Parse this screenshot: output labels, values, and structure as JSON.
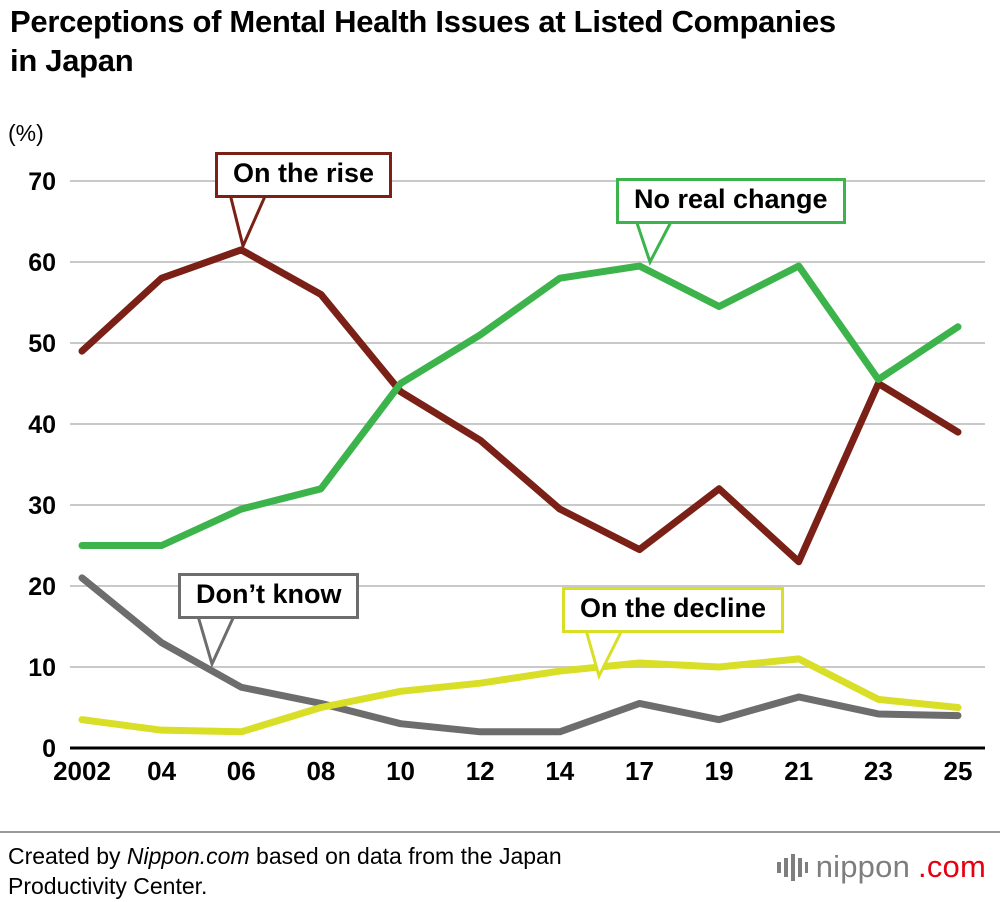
{
  "title": "Perceptions of Mental Health Issues at Listed Companies in Japan",
  "unit_label": "(%)",
  "chart_data": {
    "type": "line",
    "categories": [
      "2002",
      "04",
      "06",
      "08",
      "10",
      "12",
      "14",
      "17",
      "19",
      "21",
      "23",
      "25"
    ],
    "series": [
      {
        "name": "On the rise",
        "color": "#7b2017",
        "values": [
          49,
          58,
          61.5,
          56,
          44,
          38,
          29.5,
          24.5,
          32,
          23,
          45,
          39
        ]
      },
      {
        "name": "No real change",
        "color": "#3cb44b",
        "values": [
          25,
          25,
          29.5,
          32,
          45,
          51,
          58,
          59.5,
          54.5,
          59.5,
          45.5,
          52
        ]
      },
      {
        "name": "Don’t know",
        "color": "#6d6d6d",
        "values": [
          21,
          13,
          7.5,
          5.5,
          3,
          2,
          2,
          5.5,
          3.5,
          6.3,
          4.2,
          4
        ]
      },
      {
        "name": "On the decline",
        "color": "#d9df26",
        "values": [
          3.5,
          2.2,
          2,
          5,
          7,
          8,
          9.5,
          10.5,
          10,
          11,
          6,
          5
        ]
      }
    ],
    "ylim": [
      0,
      70
    ],
    "yticks": [
      0,
      10,
      20,
      30,
      40,
      50,
      60,
      70
    ],
    "grid": true,
    "xlabel": "",
    "ylabel": "(%)",
    "legend_position": "inline-callouts"
  },
  "annotations": [
    {
      "label": "On the rise"
    },
    {
      "label": "No real change"
    },
    {
      "label": "Don’t know"
    },
    {
      "label": "On the decline"
    }
  ],
  "footer": {
    "credit_prefix": "Created by ",
    "credit_brand": "Nippon.com",
    "credit_middle": " based on data from the Japan",
    "credit_line2": "Productivity Center.",
    "logo_name": "nippon",
    "logo_suffix": ".com",
    "logo_gray": "#7e7e7e",
    "logo_red": "#e60012"
  }
}
